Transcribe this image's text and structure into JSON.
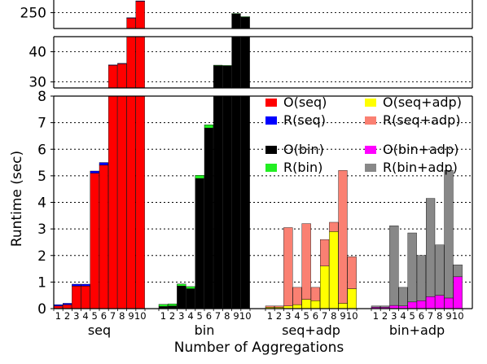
{
  "chart_data": {
    "type": "bar",
    "stacked": true,
    "broken_y_axis": true,
    "xlabel": "Number of Aggregations",
    "ylabel": "Runtime (sec)",
    "groups": [
      "seq",
      "bin",
      "seq+adp",
      "bin+adp"
    ],
    "categories": [
      "1",
      "2",
      "3",
      "4",
      "5",
      "6",
      "7",
      "8",
      "9",
      "10"
    ],
    "y_segments": [
      {
        "range": [
          0,
          8
        ],
        "ticks": [
          0,
          1,
          2,
          3,
          4,
          5,
          6,
          7,
          8
        ]
      },
      {
        "range": [
          28,
          45
        ],
        "ticks": [
          30,
          40
        ]
      },
      {
        "range": [
          235,
          262
        ],
        "ticks": [
          250
        ]
      }
    ],
    "grid": true,
    "legend_placement": "top-right",
    "series": [
      {
        "name": "O(seq)",
        "group": "seq",
        "color": "#ff0000",
        "values": [
          0.1,
          0.15,
          0.85,
          0.85,
          5.1,
          5.4,
          35.5,
          36,
          245,
          261
        ]
      },
      {
        "name": "R(seq)",
        "group": "seq",
        "color": "#0000ff",
        "values": [
          0.05,
          0.05,
          0.07,
          0.07,
          0.08,
          0.1,
          0.15,
          0.15,
          0.2,
          0.2
        ]
      },
      {
        "name": "O(bin)",
        "group": "bin",
        "color": "#000000",
        "values": [
          0.08,
          0.1,
          0.85,
          0.75,
          4.9,
          6.8,
          35.4,
          35.3,
          249,
          246
        ]
      },
      {
        "name": "R(bin)",
        "group": "bin",
        "color": "#22ee22",
        "values": [
          0.08,
          0.08,
          0.08,
          0.08,
          0.12,
          0.12,
          0.15,
          0.15,
          0.2,
          0.2
        ]
      },
      {
        "name": "O(seq+adp)",
        "group": "seq+adp",
        "color": "#ffff00",
        "values": [
          0.05,
          0.05,
          0.1,
          0.15,
          0.35,
          0.3,
          1.6,
          2.9,
          0.2,
          0.75
        ]
      },
      {
        "name": "R(seq+adp)",
        "group": "seq+adp",
        "color": "#fa8072",
        "values": [
          0.05,
          0.05,
          2.95,
          0.65,
          2.85,
          0.5,
          1.0,
          0.35,
          5.0,
          1.2
        ]
      },
      {
        "name": "O(bin+adp)",
        "group": "bin+adp",
        "color": "#ff00ff",
        "values": [
          0.05,
          0.05,
          0.12,
          0.1,
          0.25,
          0.3,
          0.45,
          0.5,
          0.4,
          1.2
        ]
      },
      {
        "name": "R(bin+adp)",
        "group": "bin+adp",
        "color": "#888888",
        "values": [
          0.05,
          0.05,
          3.0,
          0.7,
          2.6,
          1.7,
          3.7,
          1.9,
          4.8,
          0.45
        ]
      }
    ]
  }
}
